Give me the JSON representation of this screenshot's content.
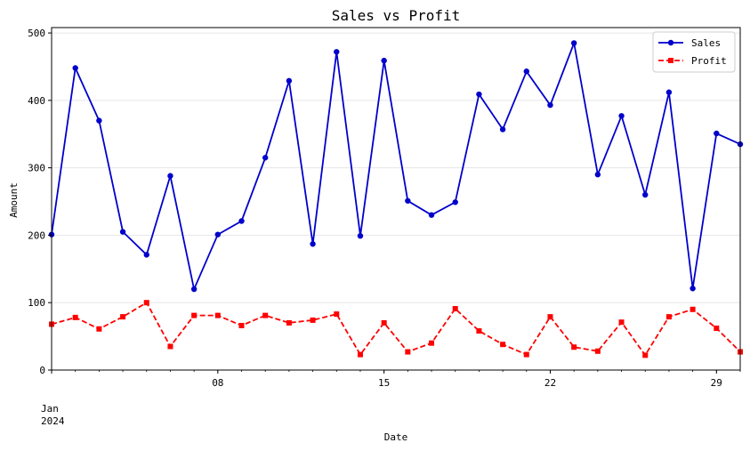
{
  "chart_data": {
    "type": "line",
    "title": "Sales vs Profit",
    "xlabel": "Date",
    "ylabel": "Amount",
    "x": [
      "2024-01-01",
      "2024-01-02",
      "2024-01-03",
      "2024-01-04",
      "2024-01-05",
      "2024-01-06",
      "2024-01-07",
      "2024-01-08",
      "2024-01-09",
      "2024-01-10",
      "2024-01-11",
      "2024-01-12",
      "2024-01-13",
      "2024-01-14",
      "2024-01-15",
      "2024-01-16",
      "2024-01-17",
      "2024-01-18",
      "2024-01-19",
      "2024-01-20",
      "2024-01-21",
      "2024-01-22",
      "2024-01-23",
      "2024-01-24",
      "2024-01-25",
      "2024-01-26",
      "2024-01-27",
      "2024-01-28",
      "2024-01-29",
      "2024-01-30"
    ],
    "x_ticks": [
      {
        "date": "2024-01-01",
        "label": "Jan",
        "sublabel": "2024"
      },
      {
        "date": "2024-01-08",
        "label": "08"
      },
      {
        "date": "2024-01-15",
        "label": "15"
      },
      {
        "date": "2024-01-22",
        "label": "22"
      },
      {
        "date": "2024-01-29",
        "label": "29"
      }
    ],
    "ylim": [
      0,
      508
    ],
    "y_ticks": [
      0,
      100,
      200,
      300,
      400,
      500
    ],
    "grid": "horizontal",
    "legend": "top-right",
    "series": [
      {
        "name": "Sales",
        "color": "#0000cc",
        "marker": "circle",
        "dash": "solid",
        "values": [
          201,
          448,
          370,
          205,
          171,
          288,
          120,
          201,
          221,
          315,
          429,
          187,
          472,
          199,
          459,
          251,
          230,
          249,
          409,
          357,
          443,
          393,
          485,
          290,
          377,
          260,
          412,
          121,
          351,
          335
        ]
      },
      {
        "name": "Profit",
        "color": "#ff0000",
        "marker": "square",
        "dash": "dashed",
        "values": [
          68,
          78,
          61,
          79,
          100,
          35,
          81,
          81,
          66,
          81,
          70,
          74,
          83,
          23,
          70,
          27,
          40,
          91,
          58,
          38,
          23,
          79,
          34,
          28,
          71,
          22,
          79,
          90,
          62,
          27
        ]
      }
    ]
  }
}
